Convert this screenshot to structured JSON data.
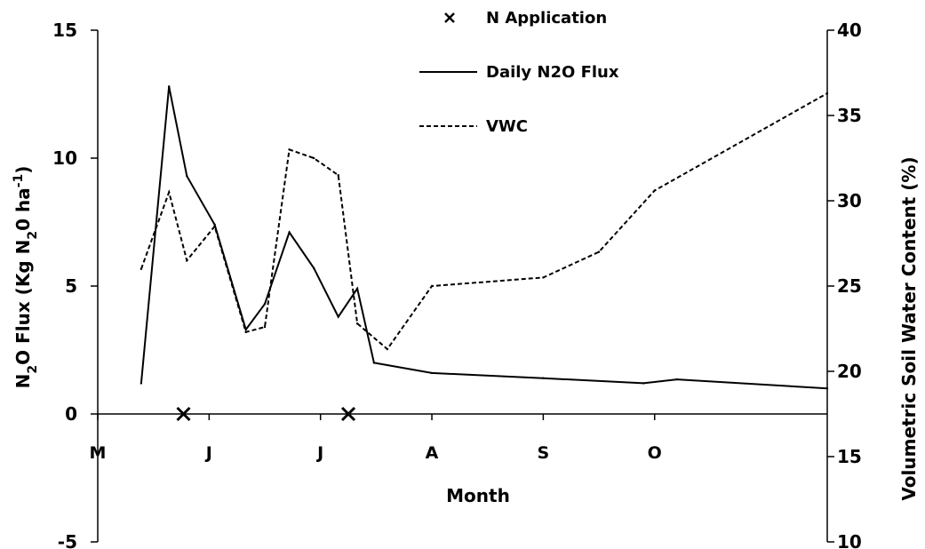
{
  "chart_data": {
    "type": "line",
    "xlabel": "Month",
    "ylabel_left": "N2O Flux (Kg N20 ha-1)",
    "ylabel_left_parts": {
      "p1": "N",
      "s1": "2",
      "p2": "O Flux (Kg N",
      "s2": "2",
      "p3": "0 ha",
      "sup": "-1",
      "p4": ")"
    },
    "ylabel_right": "Volumetric Soil Water Content (%)",
    "y_left_lim": [
      -5,
      15
    ],
    "y_left_ticks": [
      -5,
      0,
      5,
      10,
      15
    ],
    "y_right_lim": [
      10,
      40
    ],
    "y_right_ticks": [
      10,
      15,
      20,
      25,
      30,
      35,
      40
    ],
    "x_lim": [
      0,
      6.55
    ],
    "x_ticks": [
      0,
      1,
      2,
      3,
      4,
      5
    ],
    "x_tick_labels": [
      "M",
      "J",
      "J",
      "A",
      "S",
      "O"
    ],
    "legend_position": "top-center",
    "series": [
      {
        "name": "Daily N2O Flux",
        "axis": "left",
        "style": "solid",
        "x": [
          0.39,
          0.64,
          0.8,
          1.05,
          1.33,
          1.5,
          1.72,
          1.94,
          2.16,
          2.33,
          2.48,
          3.0,
          4.0,
          4.9,
          5.2,
          6.55
        ],
        "y": [
          1.2,
          12.8,
          9.3,
          7.4,
          3.3,
          4.3,
          7.1,
          5.7,
          3.8,
          4.9,
          2.0,
          1.6,
          1.4,
          1.2,
          1.35,
          1.0
        ]
      },
      {
        "name": "VWC",
        "axis": "right",
        "style": "dashed",
        "x": [
          0.39,
          0.64,
          0.8,
          1.05,
          1.33,
          1.5,
          1.72,
          1.94,
          2.16,
          2.33,
          2.6,
          3.0,
          4.0,
          4.5,
          5.0,
          6.55
        ],
        "y": [
          26.0,
          30.5,
          26.5,
          28.5,
          22.3,
          22.6,
          33.0,
          32.5,
          31.5,
          22.8,
          21.3,
          25.0,
          25.5,
          27.0,
          30.6,
          36.3
        ]
      }
    ],
    "n_application": {
      "name": "N Application",
      "marker": "x",
      "x": [
        0.77,
        2.25
      ],
      "y": [
        0,
        0
      ]
    }
  }
}
